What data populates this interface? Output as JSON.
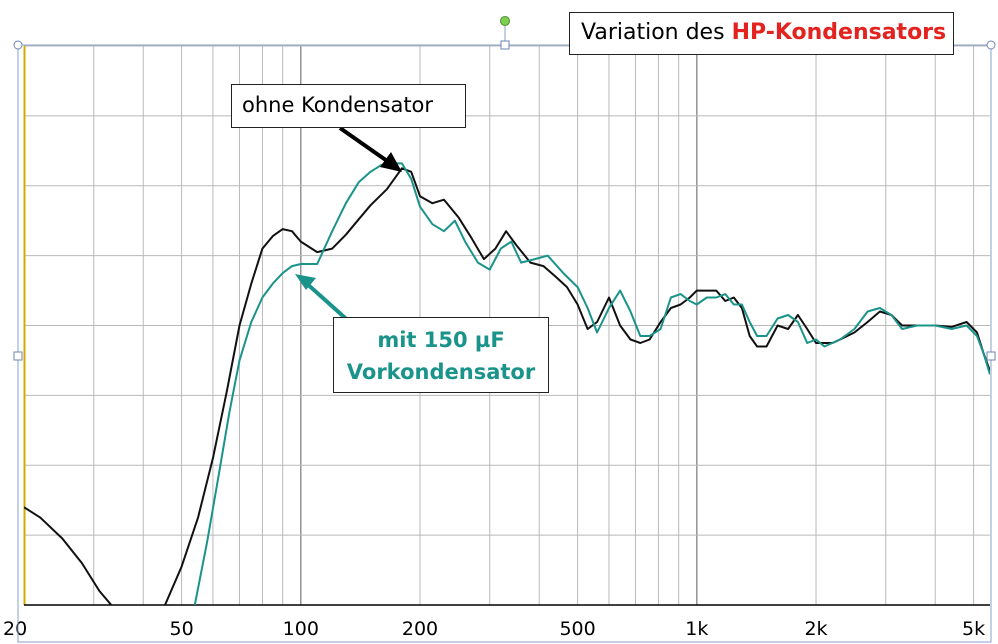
{
  "title": {
    "prefix": "Variation des ",
    "highlight": "HP-Kondensators"
  },
  "annotations": {
    "black_curve": "ohne Kondensator",
    "teal_line1": "mit 150 µF",
    "teal_line2": "Vorkondensator"
  },
  "colors": {
    "black_curve": "#111111",
    "teal_curve": "#1a948a",
    "title_accent": "#e3231f",
    "grid": "#b9b9b9"
  },
  "chart_data": {
    "type": "line",
    "x_scale": "log",
    "x_range": [
      20,
      5500
    ],
    "x_ticks": [
      {
        "value": 20,
        "label": "20"
      },
      {
        "value": 50,
        "label": "50"
      },
      {
        "value": 100,
        "label": "100"
      },
      {
        "value": 200,
        "label": "200"
      },
      {
        "value": 500,
        "label": "500"
      },
      {
        "value": 1000,
        "label": "1k"
      },
      {
        "value": 2000,
        "label": "2k"
      },
      {
        "value": 5000,
        "label": "5k"
      }
    ],
    "y_range": [
      0,
      8
    ],
    "y_tick_labels": "none",
    "grid": true,
    "series": [
      {
        "name": "ohne Kondensator",
        "color": "#111111",
        "points": [
          [
            20,
            1.4
          ],
          [
            22,
            1.25
          ],
          [
            25,
            0.95
          ],
          [
            28,
            0.6
          ],
          [
            31,
            0.2
          ],
          [
            35,
            -0.15
          ],
          [
            40,
            -0.35
          ],
          [
            45,
            -0.05
          ],
          [
            50,
            0.55
          ],
          [
            55,
            1.25
          ],
          [
            60,
            2.1
          ],
          [
            65,
            3.05
          ],
          [
            70,
            4.0
          ],
          [
            75,
            4.6
          ],
          [
            80,
            5.1
          ],
          [
            85,
            5.28
          ],
          [
            90,
            5.38
          ],
          [
            95,
            5.35
          ],
          [
            100,
            5.2
          ],
          [
            110,
            5.05
          ],
          [
            120,
            5.1
          ],
          [
            130,
            5.3
          ],
          [
            140,
            5.52
          ],
          [
            150,
            5.72
          ],
          [
            165,
            5.95
          ],
          [
            180,
            6.25
          ],
          [
            190,
            6.2
          ],
          [
            200,
            5.85
          ],
          [
            215,
            5.75
          ],
          [
            230,
            5.8
          ],
          [
            250,
            5.55
          ],
          [
            270,
            5.25
          ],
          [
            290,
            4.95
          ],
          [
            310,
            5.1
          ],
          [
            330,
            5.35
          ],
          [
            350,
            5.15
          ],
          [
            380,
            4.9
          ],
          [
            410,
            4.85
          ],
          [
            440,
            4.7
          ],
          [
            470,
            4.55
          ],
          [
            500,
            4.3
          ],
          [
            530,
            3.95
          ],
          [
            560,
            4.05
          ],
          [
            600,
            4.4
          ],
          [
            640,
            4.0
          ],
          [
            680,
            3.8
          ],
          [
            720,
            3.75
          ],
          [
            760,
            3.8
          ],
          [
            810,
            4.05
          ],
          [
            860,
            4.25
          ],
          [
            910,
            4.3
          ],
          [
            960,
            4.4
          ],
          [
            1000,
            4.5
          ],
          [
            1060,
            4.5
          ],
          [
            1120,
            4.5
          ],
          [
            1180,
            4.35
          ],
          [
            1240,
            4.4
          ],
          [
            1300,
            4.25
          ],
          [
            1360,
            3.85
          ],
          [
            1420,
            3.7
          ],
          [
            1500,
            3.7
          ],
          [
            1600,
            4.0
          ],
          [
            1700,
            3.95
          ],
          [
            1800,
            4.15
          ],
          [
            1900,
            3.95
          ],
          [
            2000,
            3.75
          ],
          [
            2100,
            3.75
          ],
          [
            2200,
            3.75
          ],
          [
            2300,
            3.8
          ],
          [
            2500,
            3.9
          ],
          [
            2700,
            4.05
          ],
          [
            2900,
            4.2
          ],
          [
            3100,
            4.15
          ],
          [
            3300,
            4.0
          ],
          [
            3600,
            4.0
          ],
          [
            4000,
            4.0
          ],
          [
            4400,
            3.98
          ],
          [
            4800,
            4.05
          ],
          [
            5100,
            3.9
          ],
          [
            5300,
            3.6
          ],
          [
            5500,
            3.35
          ]
        ]
      },
      {
        "name": "mit 150 µF Vorkondensator",
        "color": "#1a948a",
        "points": [
          [
            54,
            0.0
          ],
          [
            58,
            0.9
          ],
          [
            62,
            1.85
          ],
          [
            66,
            2.75
          ],
          [
            70,
            3.5
          ],
          [
            75,
            4.05
          ],
          [
            80,
            4.4
          ],
          [
            85,
            4.6
          ],
          [
            90,
            4.75
          ],
          [
            95,
            4.85
          ],
          [
            100,
            4.88
          ],
          [
            110,
            4.88
          ],
          [
            120,
            5.35
          ],
          [
            130,
            5.75
          ],
          [
            140,
            6.05
          ],
          [
            150,
            6.2
          ],
          [
            160,
            6.3
          ],
          [
            170,
            6.32
          ],
          [
            180,
            6.32
          ],
          [
            190,
            6.1
          ],
          [
            200,
            5.7
          ],
          [
            215,
            5.45
          ],
          [
            230,
            5.35
          ],
          [
            245,
            5.5
          ],
          [
            260,
            5.2
          ],
          [
            280,
            4.9
          ],
          [
            300,
            4.8
          ],
          [
            320,
            5.1
          ],
          [
            340,
            5.2
          ],
          [
            360,
            4.9
          ],
          [
            390,
            4.95
          ],
          [
            420,
            5.0
          ],
          [
            460,
            4.75
          ],
          [
            500,
            4.55
          ],
          [
            530,
            4.25
          ],
          [
            560,
            3.9
          ],
          [
            600,
            4.25
          ],
          [
            640,
            4.5
          ],
          [
            680,
            4.2
          ],
          [
            720,
            3.85
          ],
          [
            760,
            3.85
          ],
          [
            810,
            3.95
          ],
          [
            860,
            4.4
          ],
          [
            910,
            4.45
          ],
          [
            960,
            4.35
          ],
          [
            1000,
            4.3
          ],
          [
            1060,
            4.4
          ],
          [
            1120,
            4.4
          ],
          [
            1180,
            4.45
          ],
          [
            1240,
            4.3
          ],
          [
            1300,
            4.3
          ],
          [
            1360,
            4.05
          ],
          [
            1420,
            3.85
          ],
          [
            1500,
            3.85
          ],
          [
            1600,
            4.1
          ],
          [
            1700,
            4.15
          ],
          [
            1800,
            4.05
          ],
          [
            1900,
            3.75
          ],
          [
            2000,
            3.8
          ],
          [
            2100,
            3.7
          ],
          [
            2200,
            3.75
          ],
          [
            2300,
            3.8
          ],
          [
            2500,
            3.95
          ],
          [
            2700,
            4.2
          ],
          [
            2900,
            4.25
          ],
          [
            3100,
            4.15
          ],
          [
            3300,
            3.95
          ],
          [
            3600,
            4.0
          ],
          [
            4000,
            4.0
          ],
          [
            4400,
            3.95
          ],
          [
            4800,
            4.0
          ],
          [
            5100,
            3.85
          ],
          [
            5300,
            3.6
          ],
          [
            5500,
            3.3
          ]
        ]
      }
    ]
  }
}
